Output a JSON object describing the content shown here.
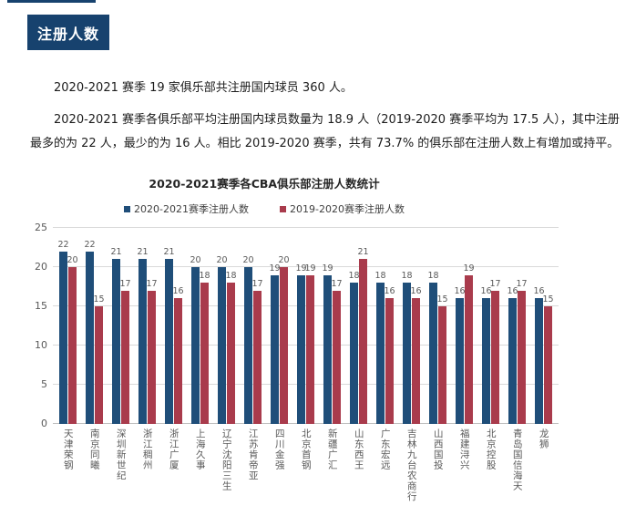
{
  "page": {
    "section_badge": "注册人数",
    "paragraphs": [
      "2020-2021 赛季 19 家俱乐部共注册国内球员 360 人。",
      "2020-2021 赛季各俱乐部平均注册国内球员数量为 18.9 人（2019-2020 赛季平均为 17.5 人），其中注册最多的为 22 人，最少的为 16 人。相比 2019-2020 赛季，共有 73.7% 的俱乐部在注册人数上有增加或持平。"
    ]
  },
  "colors": {
    "badge_navy": "#17426e",
    "series_blue": "#1f4e79",
    "series_red": "#a93b4c",
    "gridline": "#d9d9d9",
    "axis_line": "#bfbfbf",
    "tick_label": "#595959"
  },
  "chart_data": {
    "type": "bar",
    "title": "2020-2021赛季各CBA俱乐部注册人数统计",
    "categories": [
      "天津荣钢",
      "南京同曦",
      "深圳新世纪",
      "浙江稠州",
      "浙江广厦",
      "上海久事",
      "辽宁沈阳三生",
      "江苏肯帝亚",
      "四川金强",
      "北京首钢",
      "新疆广汇",
      "山东西王",
      "广东宏远",
      "吉林九台农商行",
      "山西国投",
      "福建浔兴",
      "北京控股",
      "青岛国信海天",
      "龙狮"
    ],
    "series": [
      {
        "name": "2020-2021赛季注册人数",
        "color": "#1f4e79",
        "values": [
          22,
          22,
          21,
          21,
          21,
          20,
          20,
          20,
          19,
          19,
          19,
          18,
          18,
          18,
          18,
          16,
          16,
          16,
          16
        ]
      },
      {
        "name": "2019-2020赛季注册人数",
        "color": "#a93b4c",
        "values": [
          20,
          15,
          17,
          17,
          16,
          18,
          18,
          17,
          20,
          19,
          17,
          21,
          16,
          16,
          15,
          19,
          17,
          17,
          15
        ]
      }
    ],
    "xlabel": "",
    "ylabel": "",
    "ylim": [
      0,
      25
    ],
    "yticks": [
      0,
      5,
      10,
      15,
      20,
      25
    ],
    "grid": true,
    "legend_position": "top",
    "data_labels": true
  }
}
